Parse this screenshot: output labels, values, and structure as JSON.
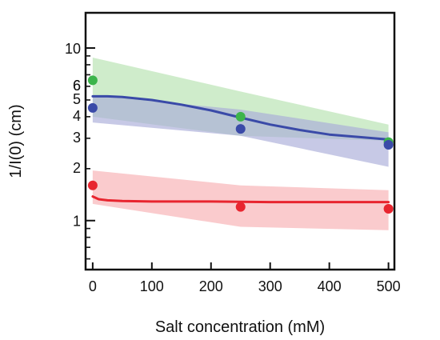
{
  "chart_data": {
    "type": "scatter",
    "title": "",
    "xlabel": "Salt concentration (mM)",
    "ylabel": "1/I(0) (cm)",
    "xlim": [
      -12,
      510
    ],
    "ylim": [
      0.52,
      16
    ],
    "yscale": "log",
    "grid": false,
    "x_ticks": [
      0,
      100,
      200,
      300,
      400,
      500
    ],
    "x_tick_labels": [
      "0",
      "100",
      "200",
      "300",
      "400",
      "500"
    ],
    "y_major_ticks": [
      1,
      10
    ],
    "y_labeled_ticks": [
      {
        "value": 1,
        "label": "1"
      },
      {
        "value": 2,
        "label": "2"
      },
      {
        "value": 3,
        "label": "3"
      },
      {
        "value": 4,
        "label": "4"
      },
      {
        "value": 5,
        "label": "5"
      },
      {
        "value": 6,
        "label": "6"
      },
      {
        "value": 6,
        "label": "6"
      },
      {
        "value": 10,
        "label": "10"
      }
    ],
    "y_minor_ticks": [
      0.6,
      0.7,
      0.8,
      0.9,
      2,
      3,
      4,
      5,
      6,
      7,
      8,
      9
    ],
    "bands": [
      {
        "color": "#a8dca0",
        "opacity": 0.55,
        "x": [
          0,
          250,
          500
        ],
        "lower": [
          4.0,
          3.1,
          2.9
        ],
        "upper": [
          8.8,
          5.6,
          3.6
        ]
      },
      {
        "color": "#a9acd8",
        "opacity": 0.65,
        "x": [
          0,
          250,
          500
        ],
        "lower": [
          3.7,
          3.1,
          2.05
        ],
        "upper": [
          5.3,
          4.4,
          3.25
        ]
      },
      {
        "color": "#f5a0a4",
        "opacity": 0.55,
        "x": [
          0,
          250,
          500
        ],
        "lower": [
          1.25,
          0.92,
          0.88
        ],
        "upper": [
          1.95,
          1.6,
          1.5
        ]
      }
    ],
    "fit_lines": [
      {
        "color": "#3a4aa8",
        "x": [
          0,
          25,
          50,
          100,
          150,
          200,
          250,
          300,
          350,
          400,
          450,
          500
        ],
        "y": [
          5.25,
          5.25,
          5.2,
          5.0,
          4.7,
          4.35,
          3.95,
          3.6,
          3.35,
          3.15,
          3.05,
          2.95
        ]
      },
      {
        "color": "#e8252f",
        "x": [
          0,
          10,
          25,
          50,
          100,
          200,
          300,
          400,
          500
        ],
        "y": [
          1.38,
          1.33,
          1.31,
          1.3,
          1.29,
          1.29,
          1.28,
          1.28,
          1.28
        ]
      }
    ],
    "series": [
      {
        "color": "#3cb44b",
        "x": [
          0,
          250,
          500
        ],
        "y": [
          6.5,
          4.0,
          2.85
        ]
      },
      {
        "color": "#3a4aa8",
        "x": [
          0,
          250,
          500
        ],
        "y": [
          4.5,
          3.4,
          2.75
        ]
      },
      {
        "color": "#e8252f",
        "x": [
          0,
          250,
          500
        ],
        "y": [
          1.6,
          1.2,
          1.17
        ]
      }
    ]
  }
}
